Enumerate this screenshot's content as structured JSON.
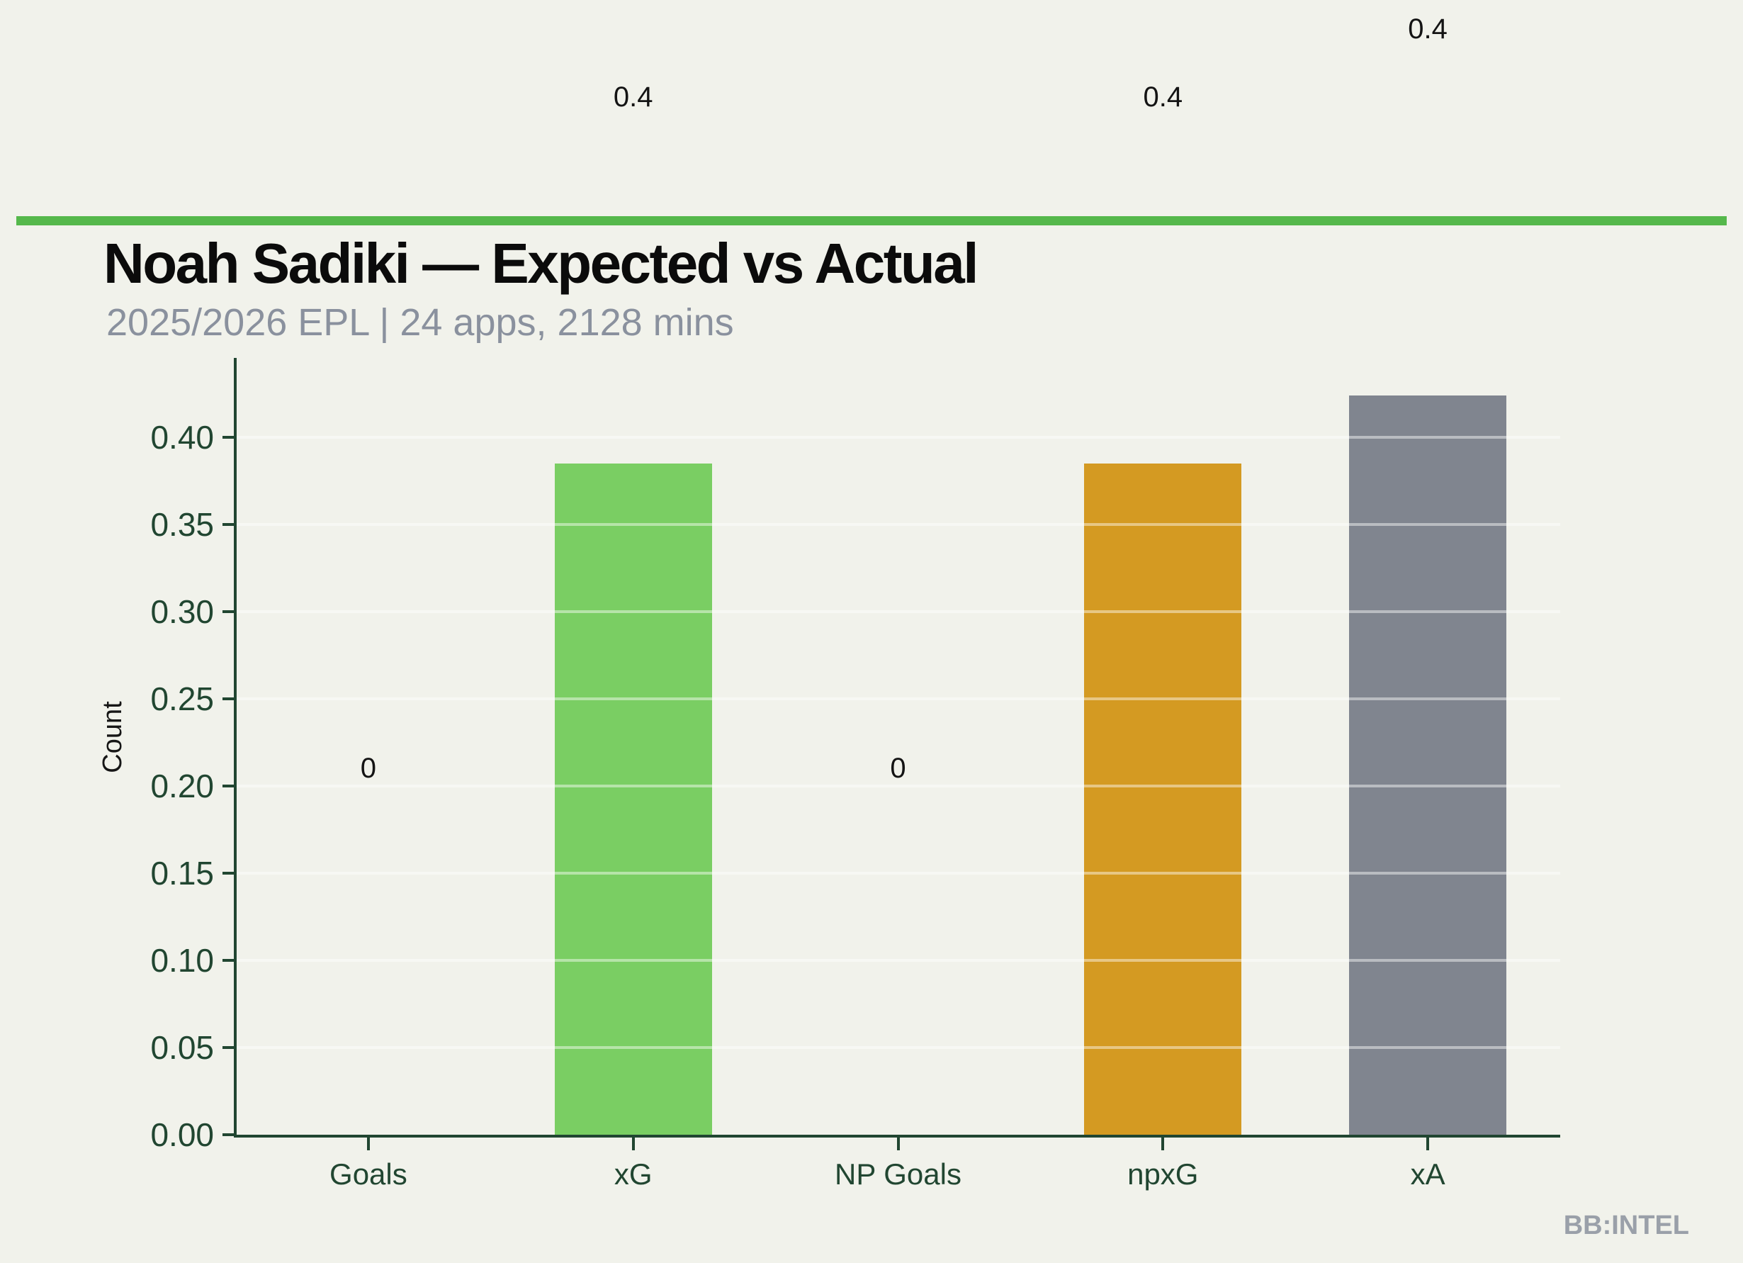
{
  "header": {
    "title": "Noah Sadiki — Expected vs Actual",
    "subtitle": "2025/2026 EPL | 24 apps, 2128 mins"
  },
  "watermark": "BB:INTEL",
  "colors": {
    "background": "#f1f2eb",
    "divider_green": "#55b84b",
    "axis_green": "#214631",
    "bar_green": "#7ace63",
    "bar_gold": "#d49a22",
    "bar_gray": "#80858f",
    "subtitle_gray": "#8a919e",
    "watermark_gray": "#9aa0a9",
    "value_label_black": "#141414"
  },
  "chart_data": {
    "type": "bar",
    "title": "Noah Sadiki — Expected vs Actual",
    "subtitle": "2025/2026 EPL | 24 apps, 2128 mins",
    "categories": [
      "Goals",
      "xG",
      "NP Goals",
      "npxG",
      "xA"
    ],
    "values": [
      0,
      0.385,
      0,
      0.385,
      0.424
    ],
    "value_labels": [
      "0",
      "0.4",
      "0",
      "0.4",
      "0.4"
    ],
    "bar_colors": [
      "#7ace63",
      "#7ace63",
      "#d49a22",
      "#d49a22",
      "#80858f"
    ],
    "xlabel": "",
    "ylabel": "Count",
    "ylim": [
      0,
      0.445
    ],
    "yticks": [
      0,
      0.05,
      0.1,
      0.15,
      0.2,
      0.25,
      0.3,
      0.35,
      0.4
    ],
    "ytick_labels": [
      "0.00",
      "0.05",
      "0.10",
      "0.15",
      "0.20",
      "0.25",
      "0.30",
      "0.35",
      "0.40"
    ],
    "grid": "horizontal",
    "legend": "none"
  }
}
